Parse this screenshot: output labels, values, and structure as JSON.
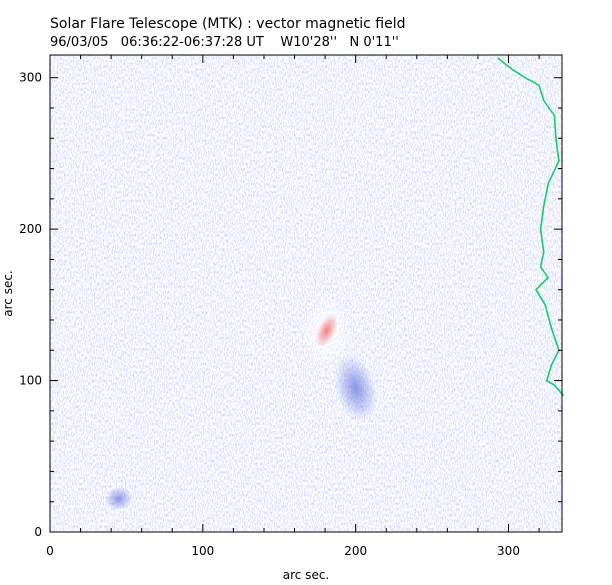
{
  "chart_data": {
    "type": "heatmap",
    "title": "Solar Flare Telescope (MTK) : vector magnetic field",
    "subtitle_parts": [
      "96/03/05",
      "06:36:22-06:37:28 UT",
      "W10'28''",
      "N 0'11''"
    ],
    "xlabel": "arc sec.",
    "ylabel": "arc sec.",
    "xlim": [
      0,
      335
    ],
    "ylim": [
      0,
      315
    ],
    "x_ticks": [
      0,
      100,
      200,
      300
    ],
    "y_ticks": [
      0,
      100,
      200,
      300
    ],
    "grid": false,
    "colors": {
      "field_background": "#9aa4ea",
      "positive_polarity": "#ef7a7a",
      "negative_polarity": "#6f7fe0",
      "limb_contour": "#19c96a"
    },
    "features": [
      {
        "name": "positive-polarity-spot",
        "x": 181,
        "y": 133,
        "polarity": "positive"
      },
      {
        "name": "negative-polarity-patch",
        "x": 200,
        "y": 95,
        "polarity": "negative"
      },
      {
        "name": "negative-polarity-patch-small",
        "x": 45,
        "y": 22,
        "polarity": "negative"
      }
    ],
    "limb_curve": [
      [
        293,
        313
      ],
      [
        303,
        305
      ],
      [
        311,
        300
      ],
      [
        320,
        295
      ],
      [
        323,
        285
      ],
      [
        330,
        275
      ],
      [
        331,
        260
      ],
      [
        333,
        245
      ],
      [
        326,
        230
      ],
      [
        323,
        215
      ],
      [
        321,
        200
      ],
      [
        323,
        185
      ],
      [
        321,
        175
      ],
      [
        326,
        168
      ],
      [
        318,
        160
      ],
      [
        324,
        150
      ],
      [
        328,
        135
      ],
      [
        333,
        120
      ],
      [
        328,
        110
      ],
      [
        325,
        100
      ],
      [
        330,
        97
      ],
      [
        336,
        90
      ]
    ]
  }
}
